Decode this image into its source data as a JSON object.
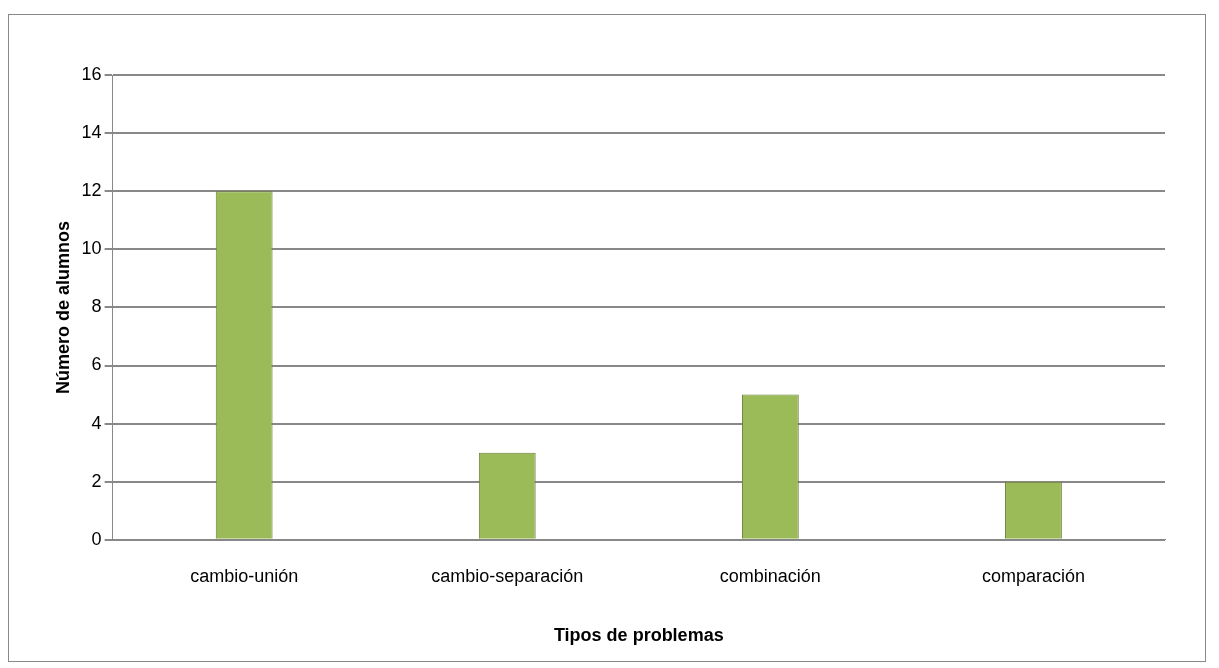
{
  "chart_data": {
    "type": "bar",
    "categories": [
      "cambio-unión",
      "cambio-separación",
      "combinación",
      "comparación"
    ],
    "values": [
      12,
      3,
      5,
      2
    ],
    "color": "#9bbb59",
    "xlabel": "Tipos de problemas",
    "ylabel": "Número de alumnos",
    "ylim": [
      0,
      16
    ],
    "yticks": [
      0,
      2,
      4,
      6,
      8,
      10,
      12,
      14,
      16
    ],
    "grid": "y",
    "legend": false
  }
}
